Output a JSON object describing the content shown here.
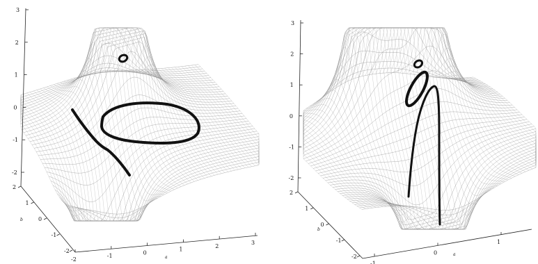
{
  "chart_data": [
    {
      "type": "surface",
      "title": "",
      "x_axis": {
        "label": "a",
        "ticks": [
          "-2",
          "-1",
          "0",
          "1",
          "2",
          "3"
        ]
      },
      "y_axis": {
        "label": "b",
        "ticks": [
          "2",
          "1",
          "0",
          "-1",
          "-2"
        ]
      },
      "z_axis": {
        "label": "",
        "ticks": [
          "3",
          "2",
          "1",
          "0",
          "-1",
          "-2"
        ]
      },
      "curves": [
        "diagonal-curve",
        "closed-loop-large",
        "closed-loop-small"
      ]
    },
    {
      "type": "surface",
      "title": "",
      "x_axis": {
        "label": "a",
        "ticks": [
          "-1",
          "0",
          "1"
        ]
      },
      "y_axis": {
        "label": "b",
        "ticks": [
          "2",
          "1",
          "0",
          "-1",
          "-2"
        ]
      },
      "z_axis": {
        "label": "",
        "ticks": [
          "3",
          "2",
          "1",
          "0",
          "-1",
          "-2"
        ]
      },
      "curves": [
        "tall-arch-curve",
        "closed-loop-medium",
        "closed-loop-small"
      ]
    }
  ]
}
